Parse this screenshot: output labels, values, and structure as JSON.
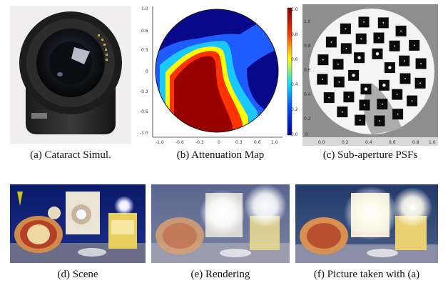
{
  "figure": {
    "captions": {
      "a": "(a)  Cataract Simul.",
      "b": "(b)  Attenuation Map",
      "c": "(c)  Sub-aperture PSFs",
      "d": "(d)  Scene",
      "e": "(e)  Rendering",
      "f": "(f)  Picture taken with (a)"
    },
    "attenuation_map": {
      "y_ticks": [
        "1.0",
        "0.6",
        "0.3",
        "0",
        "-0.3",
        "-0.6",
        "-1.0"
      ],
      "x_ticks": [
        "-1.0",
        "-0.6",
        "-0.3",
        "0",
        "0.3",
        "0.6",
        "1.0"
      ],
      "colorbar_ticks": [
        "1.0",
        "0.8",
        "0.6",
        "0.4",
        "0.2",
        "0.0"
      ],
      "colors": [
        "#08088a",
        "#1f5cff",
        "#19c8ff",
        "#ffff00",
        "#ff3300",
        "#990000"
      ]
    },
    "psf_panel": {
      "y_ticks": [
        "1.0",
        "0.8",
        "0.6",
        "0.4",
        "0.2",
        "0"
      ],
      "x_ticks": [
        "0.0",
        "0.2",
        "0.4",
        "0.6",
        "0.8",
        "1.0"
      ]
    }
  }
}
